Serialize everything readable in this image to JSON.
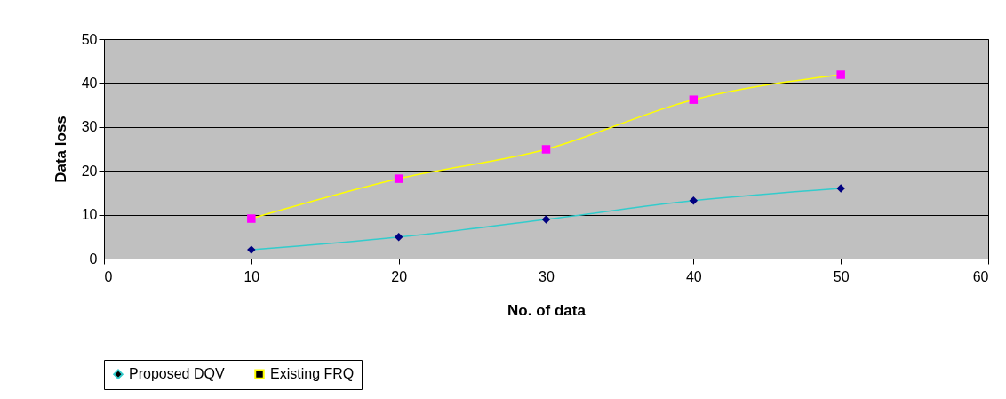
{
  "chart_data": {
    "type": "line",
    "xlabel": "No. of data",
    "ylabel": "Data loss",
    "x": [
      10,
      20,
      30,
      40,
      50
    ],
    "series": [
      {
        "name": "Proposed DQV",
        "color": "#33cccc",
        "colors": [
          "#000080",
          "#000080",
          "#000080",
          "#000080",
          "#000080"
        ],
        "marker": "diamond",
        "values": [
          2.0,
          4.9,
          8.9,
          13.2,
          16.0
        ]
      },
      {
        "name": "Existing FRQ",
        "color": "#ffff00",
        "colors": [
          "#ff00ff",
          "#ff00ff",
          "#ff00ff",
          "#ff00ff",
          "#ff00ff"
        ],
        "marker": "square",
        "values": [
          9.1,
          18.2,
          24.9,
          36.2,
          41.9
        ]
      }
    ],
    "xlim": [
      0,
      60
    ],
    "xticks": [
      0,
      10,
      20,
      30,
      40,
      50,
      60
    ],
    "ylim": [
      0,
      50
    ],
    "yticks": [
      0,
      10,
      20,
      30,
      40,
      50
    ],
    "grid": "y",
    "legend": "bottom"
  }
}
